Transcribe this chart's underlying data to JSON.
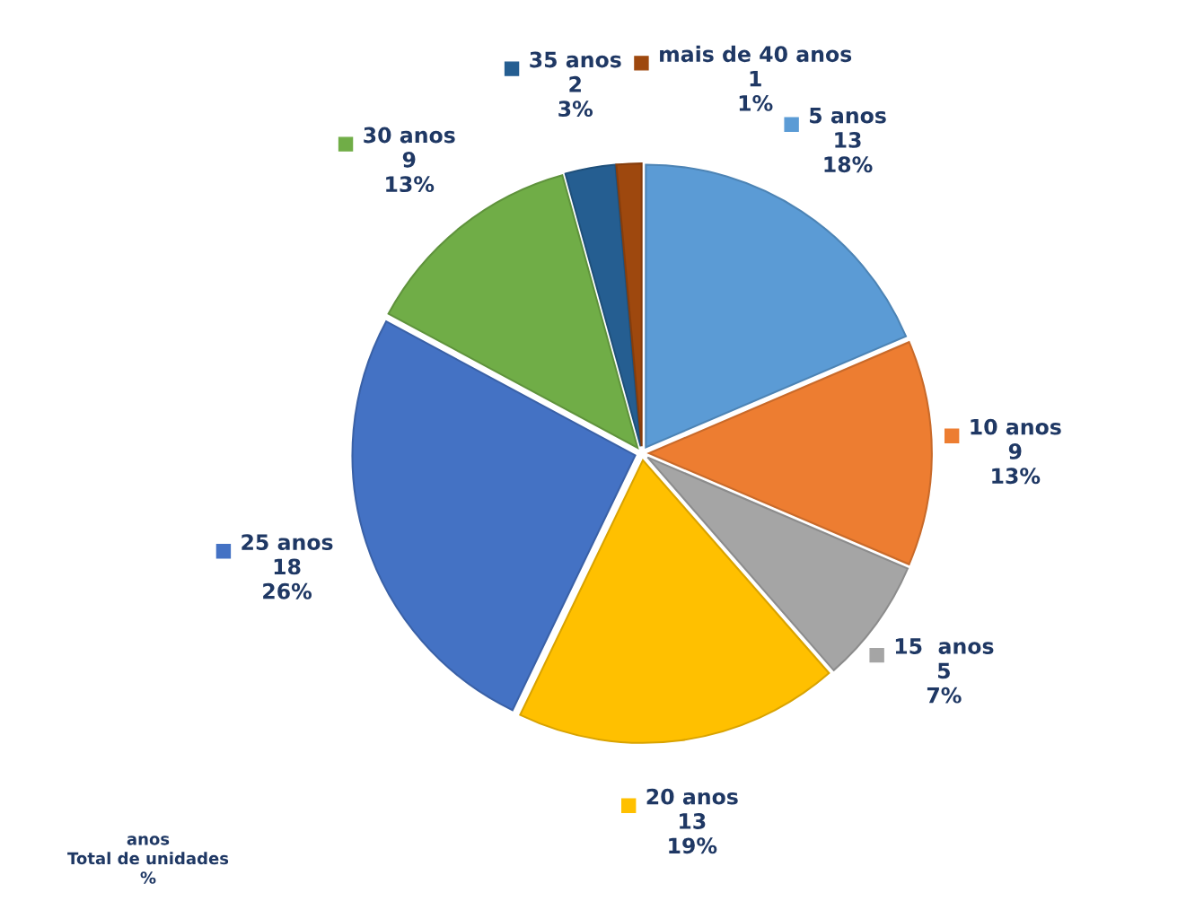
{
  "chart_data": {
    "type": "pie",
    "categories": [
      "5 anos",
      "10 anos",
      "15  anos",
      "20 anos",
      "25 anos",
      "30 anos",
      "35 anos",
      "mais de 40 anos"
    ],
    "values": [
      13,
      9,
      5,
      13,
      18,
      9,
      2,
      1
    ],
    "value_labels": [
      "13\n18%",
      "9\n13%",
      "5\n7%",
      "13\n19%",
      "18\n26%",
      "9\n13%",
      "2\n3%",
      "1\n1%"
    ],
    "colors": [
      "#5b9bd5",
      "#ed7d31",
      "#a5a5a5",
      "#ffc000",
      "#4472c4",
      "#70ad47",
      "#255e91",
      "#9e480e"
    ],
    "legend": "right",
    "annotations": [
      "anos\nTotal de unidades\n%"
    ]
  }
}
